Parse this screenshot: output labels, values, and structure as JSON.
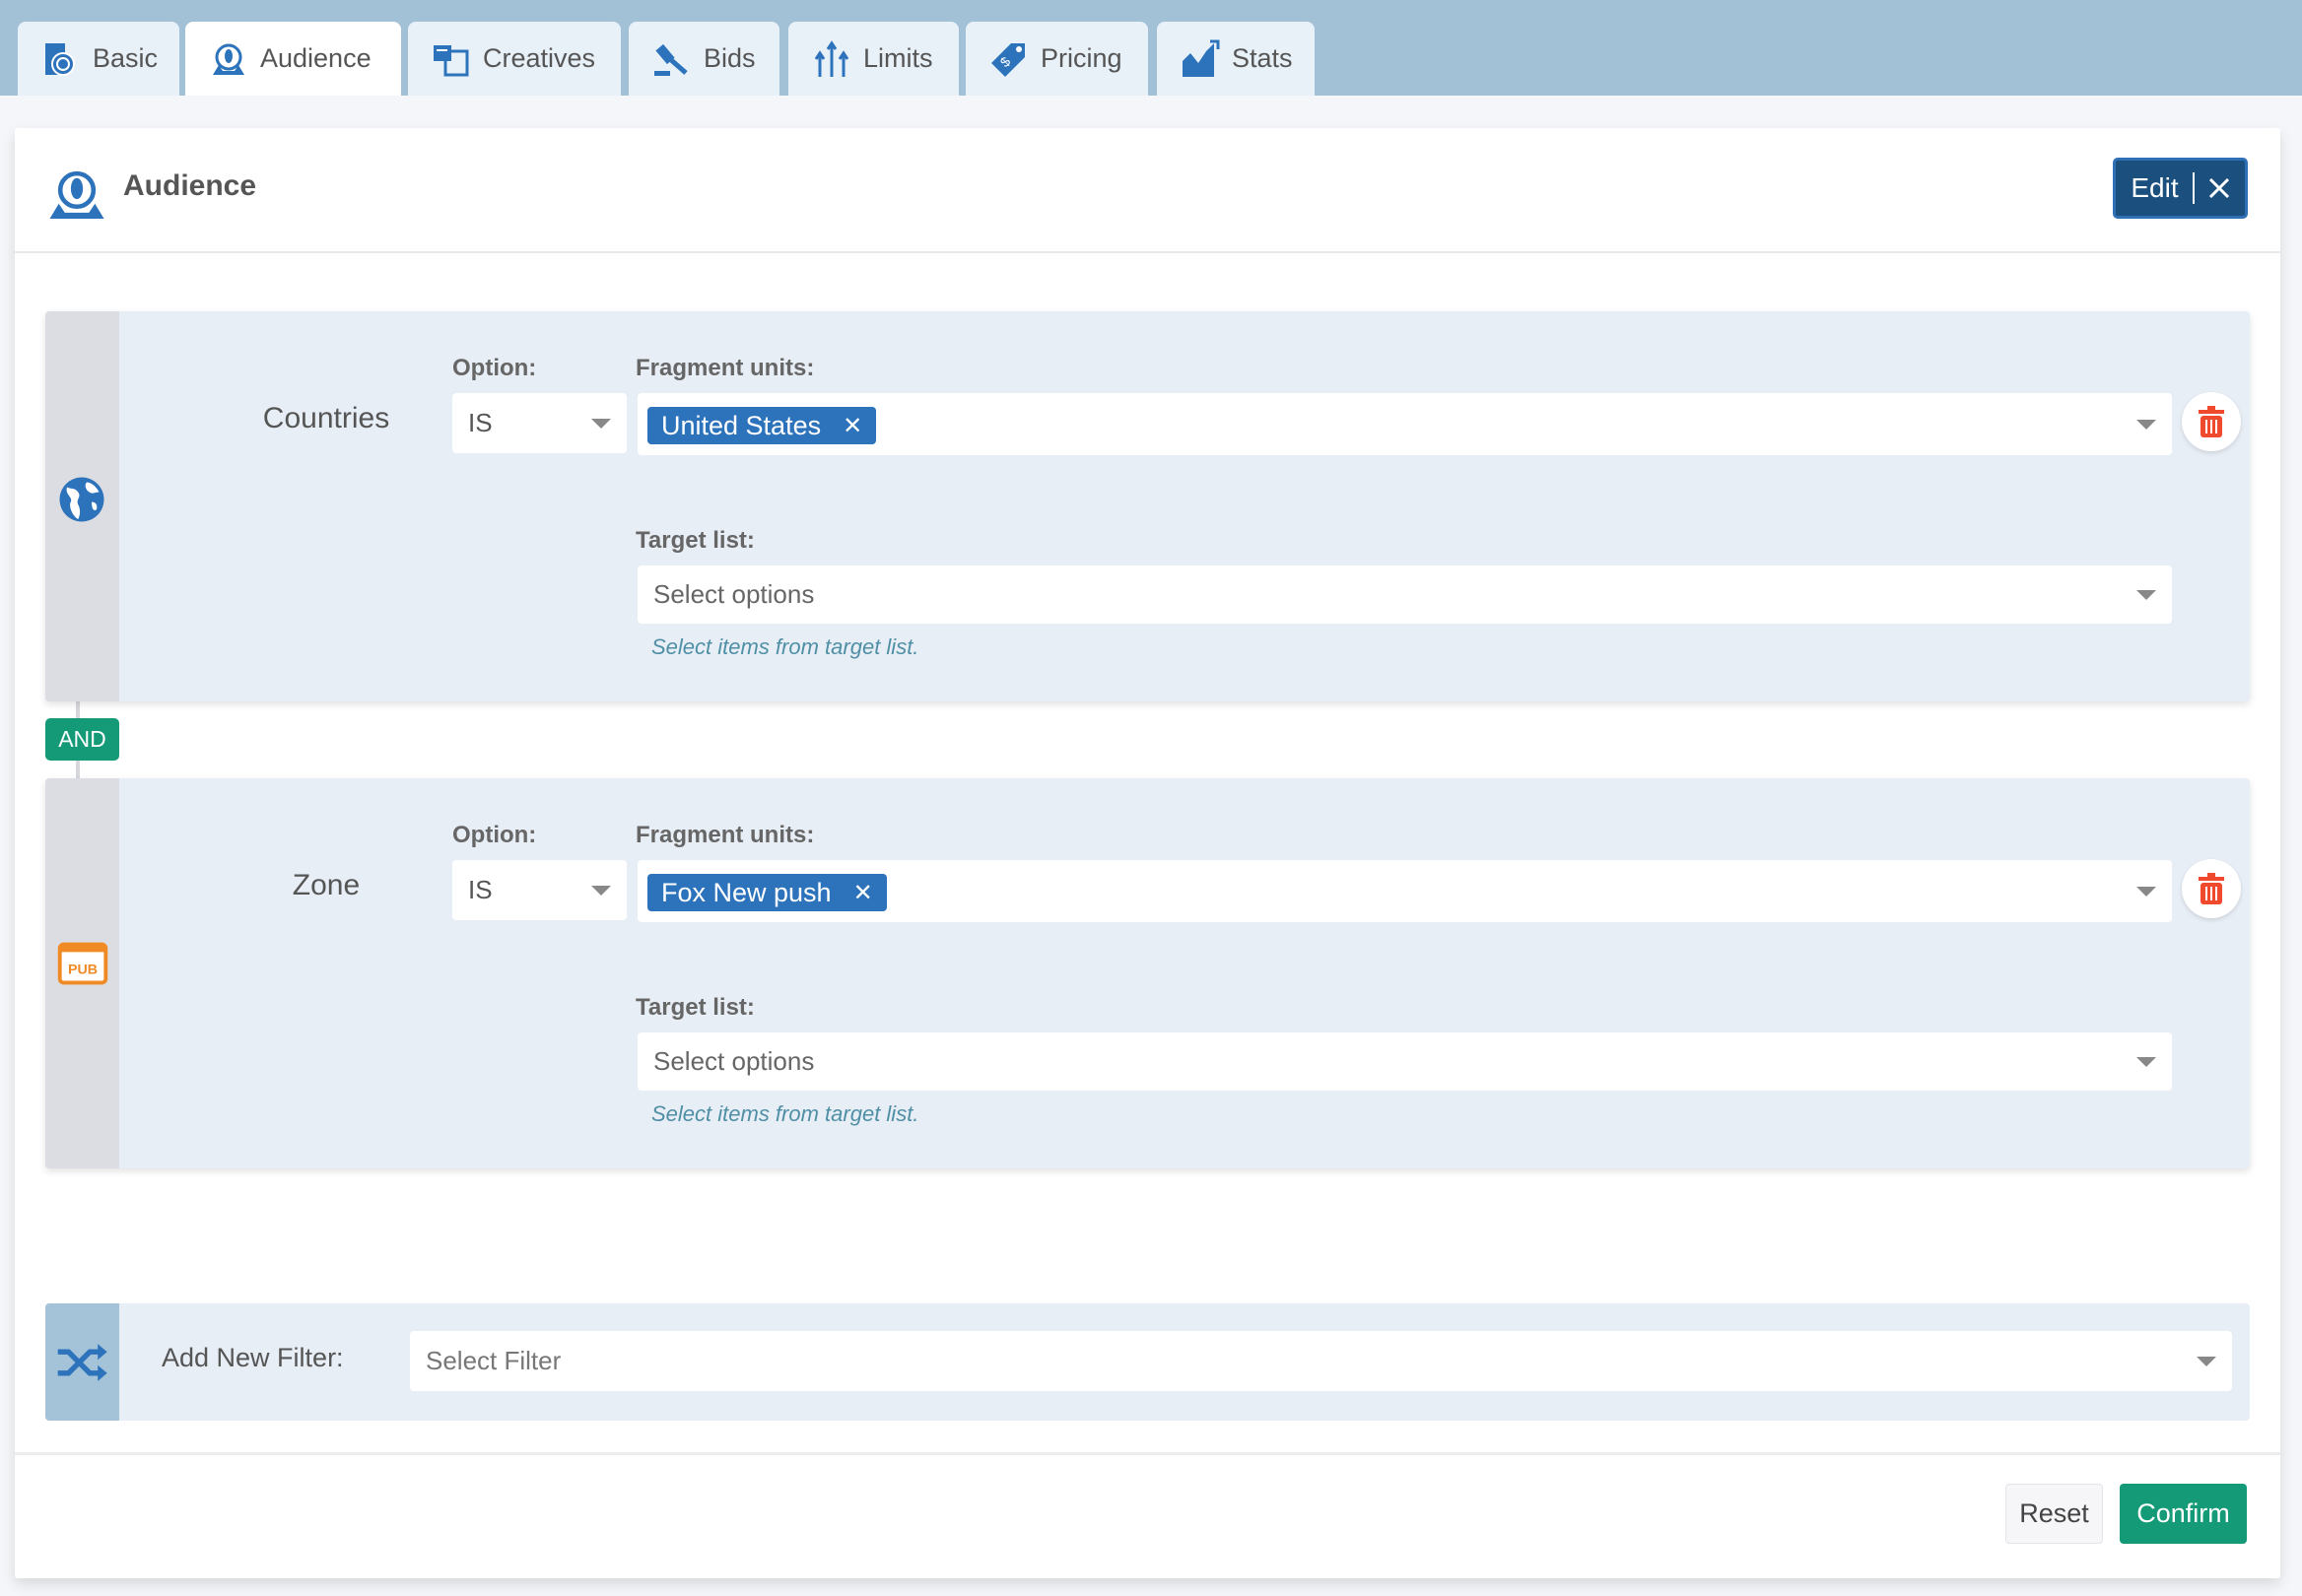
{
  "tabs": [
    {
      "label": "Basic",
      "icon": "stopwatch-clipboard-icon"
    },
    {
      "label": "Audience",
      "icon": "audience-icon",
      "active": true
    },
    {
      "label": "Creatives",
      "icon": "creatives-icon"
    },
    {
      "label": "Bids",
      "icon": "gavel-icon"
    },
    {
      "label": "Limits",
      "icon": "limits-arrows-icon"
    },
    {
      "label": "Pricing",
      "icon": "price-tag-icon"
    },
    {
      "label": "Stats",
      "icon": "stats-chart-icon"
    }
  ],
  "header": {
    "title": "Audience",
    "edit_label": "Edit"
  },
  "filters": [
    {
      "name": "Countries",
      "icon": "globe-icon",
      "option_label": "Option:",
      "option_value": "IS",
      "fragment_label": "Fragment units:",
      "fragment_chip": "United States",
      "target_label": "Target list:",
      "target_placeholder": "Select options",
      "hint": "Select items from target list."
    },
    {
      "name": "Zone",
      "icon": "pub-icon",
      "option_label": "Option:",
      "option_value": "IS",
      "fragment_label": "Fragment units:",
      "fragment_chip": "Fox New push",
      "target_label": "Target list:",
      "target_placeholder": "Select options",
      "hint": "Select items from target list."
    }
  ],
  "connector": "AND",
  "add_filter": {
    "label": "Add New Filter:",
    "placeholder": "Select Filter"
  },
  "footer": {
    "reset": "Reset",
    "confirm": "Confirm"
  },
  "colors": {
    "primary": "#2d73bb",
    "edit": "#1a4f7e",
    "confirm": "#149a77",
    "danger": "#f04a2e",
    "pub": "#f08a24"
  }
}
